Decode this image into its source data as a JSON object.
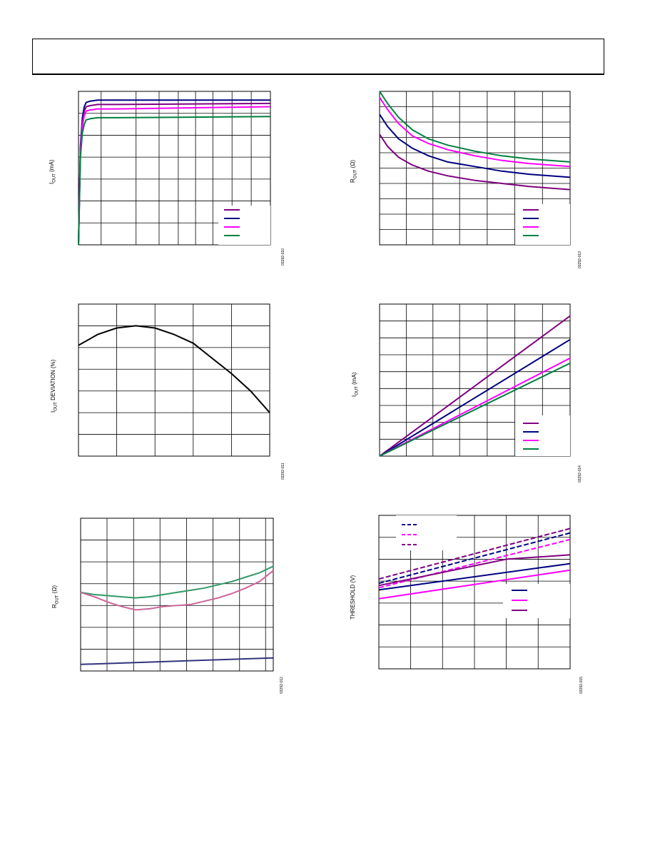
{
  "colors": {
    "purple": "#800080",
    "navy": "#000080",
    "magenta": "#ff00ff",
    "green": "#008040",
    "black": "#000000",
    "mauve": "#cc6699",
    "sea": "#339966",
    "slate": "#333380"
  },
  "charts": {
    "c1": {
      "ylabel_main": "I",
      "ylabel_sub": "OUT",
      "ylabel_unit": " (mA)",
      "code": "03292-010"
    },
    "c2": {
      "ylabel_main": "R",
      "ylabel_sub": "OUT",
      "ylabel_unit": " (Ω)",
      "code": "03292-013"
    },
    "c3": {
      "ylabel_main": "I",
      "ylabel_sub": "OUT",
      "ylabel_unit": " DEVIATION (%)",
      "code": "03292-011"
    },
    "c4": {
      "ylabel_main": "I",
      "ylabel_sub": "OUT",
      "ylabel_unit": " (mA)",
      "code": "03292-014"
    },
    "c5": {
      "ylabel_main": "R",
      "ylabel_sub": "OUT",
      "ylabel_unit": " (Ω)",
      "code": "03292-012"
    },
    "c6": {
      "ylabel_main": "THRESHOLD (V)",
      "ylabel_sub": "",
      "ylabel_unit": "",
      "code": "03292-015"
    }
  },
  "chart_data": [
    {
      "type": "line",
      "ylabel": "IOUT (mA)",
      "grid": true,
      "legend": "bottom-right",
      "xlim": [
        0,
        10
      ],
      "ylim": [
        0,
        7
      ],
      "series": [
        {
          "color": "navy",
          "x": [
            0,
            0.1,
            0.2,
            0.3,
            0.4,
            0.6,
            1,
            2,
            10
          ],
          "y": [
            0,
            4.5,
            5.8,
            6.3,
            6.5,
            6.55,
            6.6,
            6.6,
            6.6
          ]
        },
        {
          "color": "purple",
          "x": [
            0,
            0.1,
            0.2,
            0.3,
            0.4,
            0.6,
            1,
            2,
            10
          ],
          "y": [
            0,
            4.3,
            5.6,
            6.1,
            6.3,
            6.35,
            6.4,
            6.4,
            6.45
          ]
        },
        {
          "color": "magenta",
          "x": [
            0,
            0.1,
            0.2,
            0.3,
            0.4,
            0.6,
            1,
            2,
            10
          ],
          "y": [
            0,
            4.2,
            5.4,
            5.9,
            6.1,
            6.15,
            6.2,
            6.2,
            6.3
          ]
        },
        {
          "color": "green",
          "x": [
            0,
            0.1,
            0.2,
            0.3,
            0.4,
            0.6,
            1,
            2,
            10
          ],
          "y": [
            0,
            4.0,
            5.1,
            5.5,
            5.7,
            5.75,
            5.8,
            5.8,
            5.85
          ]
        }
      ]
    },
    {
      "type": "line",
      "ylabel": "ROUT (Ω)",
      "grid": true,
      "legend": "bottom-right",
      "xlim": [
        0,
        7
      ],
      "ylim": [
        0,
        10
      ],
      "series": [
        {
          "color": "green",
          "x": [
            0,
            0.3,
            0.7,
            1.2,
            1.8,
            2.5,
            3.5,
            4.5,
            5.5,
            7
          ],
          "y": [
            10,
            9.2,
            8.3,
            7.5,
            6.9,
            6.5,
            6.1,
            5.8,
            5.6,
            5.4
          ]
        },
        {
          "color": "magenta",
          "x": [
            0,
            0.3,
            0.7,
            1.2,
            1.8,
            2.5,
            3.5,
            4.5,
            5.5,
            7
          ],
          "y": [
            9.6,
            8.8,
            7.9,
            7.1,
            6.6,
            6.2,
            5.8,
            5.5,
            5.3,
            5.1
          ]
        },
        {
          "color": "navy",
          "x": [
            0,
            0.3,
            0.7,
            1.2,
            1.8,
            2.5,
            3.5,
            4.5,
            5.5,
            7
          ],
          "y": [
            8.5,
            7.7,
            6.9,
            6.3,
            5.8,
            5.4,
            5.1,
            4.8,
            4.6,
            4.4
          ]
        },
        {
          "color": "purple",
          "x": [
            0,
            0.3,
            0.7,
            1.2,
            1.8,
            2.5,
            3.5,
            4.5,
            5.5,
            7
          ],
          "y": [
            7.2,
            6.4,
            5.7,
            5.2,
            4.8,
            4.5,
            4.2,
            4.0,
            3.8,
            3.6
          ]
        }
      ]
    },
    {
      "type": "line",
      "ylabel": "IOUT DEVIATION (%)",
      "grid": true,
      "xlim": [
        0,
        5
      ],
      "ylim": [
        0,
        7
      ],
      "series": [
        {
          "color": "black",
          "x": [
            0,
            0.5,
            1,
            1.5,
            2,
            2.5,
            3,
            3.5,
            4,
            4.5,
            5
          ],
          "y": [
            5.1,
            5.6,
            5.9,
            6.0,
            5.9,
            5.6,
            5.2,
            4.5,
            3.8,
            3.0,
            2.0
          ]
        }
      ]
    },
    {
      "type": "line",
      "ylabel": "IOUT (mA)",
      "grid": true,
      "legend": "bottom-right",
      "xlim": [
        0,
        7
      ],
      "ylim": [
        0,
        9
      ],
      "series": [
        {
          "color": "purple",
          "x": [
            0,
            7
          ],
          "y": [
            0,
            8.3
          ]
        },
        {
          "color": "navy",
          "x": [
            0,
            7
          ],
          "y": [
            0,
            6.9
          ]
        },
        {
          "color": "magenta",
          "x": [
            0,
            7
          ],
          "y": [
            0,
            5.8
          ]
        },
        {
          "color": "green",
          "x": [
            0,
            7
          ],
          "y": [
            0,
            5.5
          ]
        }
      ]
    },
    {
      "type": "line",
      "ylabel": "ROUT (Ω)",
      "grid": true,
      "xlim": [
        0,
        7
      ],
      "ylim": [
        0,
        7
      ],
      "series": [
        {
          "color": "sea",
          "x": [
            0,
            0.5,
            1,
            1.5,
            2,
            2.5,
            3,
            3.5,
            4,
            4.5,
            5,
            5.5,
            6,
            6.5,
            7
          ],
          "y": [
            3.6,
            3.5,
            3.45,
            3.4,
            3.35,
            3.4,
            3.5,
            3.6,
            3.7,
            3.8,
            3.95,
            4.1,
            4.3,
            4.5,
            4.8
          ]
        },
        {
          "color": "mauve",
          "x": [
            0,
            0.5,
            1,
            1.5,
            2,
            2.5,
            3,
            3.5,
            4,
            4.5,
            5,
            5.5,
            6,
            6.5,
            7
          ],
          "y": [
            3.6,
            3.4,
            3.15,
            2.95,
            2.8,
            2.85,
            2.95,
            3.0,
            3.05,
            3.2,
            3.35,
            3.55,
            3.8,
            4.1,
            4.6
          ]
        },
        {
          "color": "slate",
          "x": [
            0,
            7
          ],
          "y": [
            0.3,
            0.6
          ]
        }
      ]
    },
    {
      "type": "line",
      "ylabel": "THRESHOLD (V)",
      "grid": true,
      "legend": "top-left / bottom-right",
      "xlim": [
        0,
        6
      ],
      "ylim": [
        0,
        7
      ],
      "series": [
        {
          "color": "purple",
          "dashed": true,
          "x": [
            0,
            6
          ],
          "y": [
            4.1,
            6.4
          ]
        },
        {
          "color": "navy",
          "dashed": true,
          "x": [
            0,
            6
          ],
          "y": [
            3.9,
            6.2
          ]
        },
        {
          "color": "magenta",
          "dashed": true,
          "x": [
            0,
            6
          ],
          "y": [
            3.7,
            5.9
          ]
        },
        {
          "color": "purple",
          "dashed": false,
          "x": [
            0,
            2,
            4,
            6
          ],
          "y": [
            3.8,
            4.4,
            5.0,
            5.2
          ]
        },
        {
          "color": "navy",
          "dashed": false,
          "x": [
            0,
            6
          ],
          "y": [
            3.6,
            4.8
          ]
        },
        {
          "color": "magenta",
          "dashed": false,
          "x": [
            0,
            6
          ],
          "y": [
            3.2,
            4.5
          ]
        }
      ]
    }
  ]
}
